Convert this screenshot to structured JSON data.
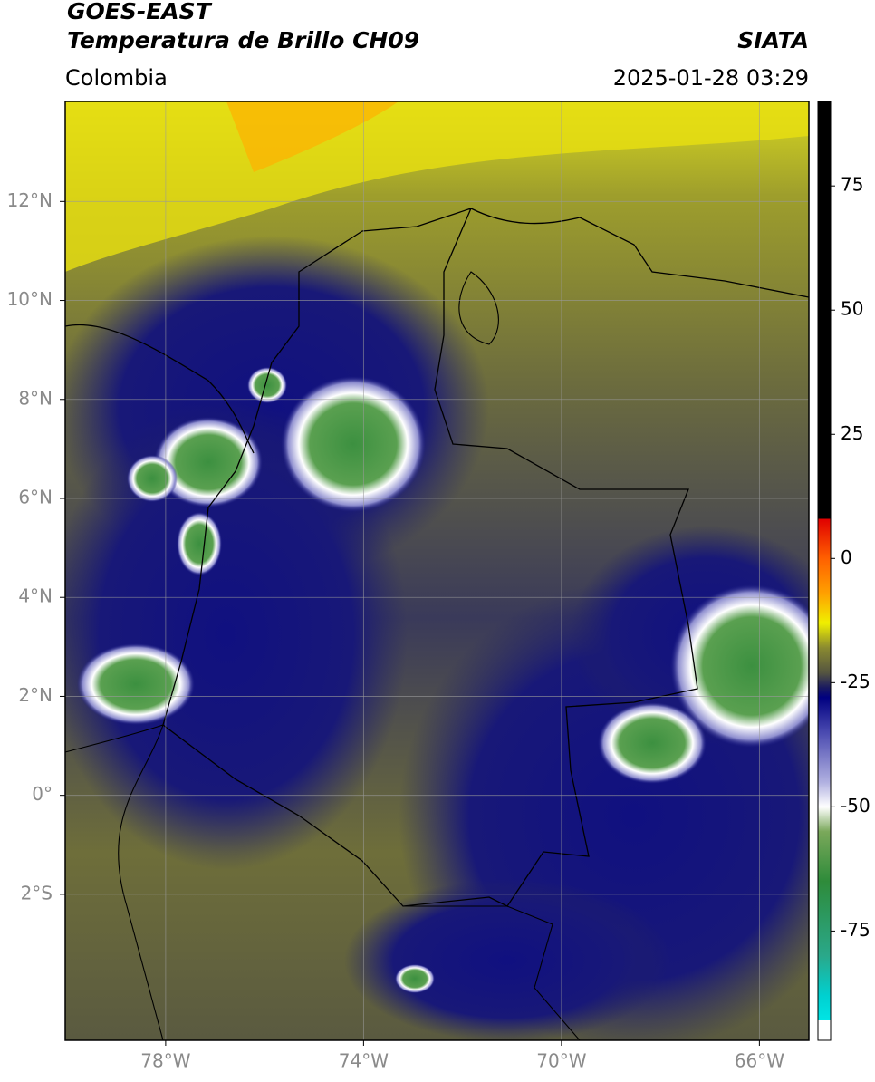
{
  "header": {
    "title": "GOES-EAST",
    "subtitle": "Temperatura de Brillo CH09",
    "source": "SIATA",
    "region": "Colombia",
    "datetime": "2025-01-28 03:29"
  },
  "map": {
    "lonlim": [
      -80.03,
      -65.0
    ],
    "latlim": [
      -4.95,
      14.02
    ],
    "lonticks": [
      {
        "value": -78,
        "label": "78°W"
      },
      {
        "value": -74,
        "label": "74°W"
      },
      {
        "value": -70,
        "label": "70°W"
      },
      {
        "value": -66,
        "label": "66°W"
      }
    ],
    "latticks": [
      {
        "value": 12,
        "label": "12°N"
      },
      {
        "value": 10,
        "label": "10°N"
      },
      {
        "value": 8,
        "label": "8°N"
      },
      {
        "value": 6,
        "label": "6°N"
      },
      {
        "value": 4,
        "label": "4°N"
      },
      {
        "value": 2,
        "label": "2°N"
      },
      {
        "value": 0,
        "label": "0°"
      },
      {
        "value": -2,
        "label": "2°S"
      }
    ],
    "grid": true
  },
  "colorbar": {
    "lim": [
      -97,
      92
    ],
    "ticks": [
      75,
      50,
      25,
      0,
      -25,
      -50,
      -75
    ],
    "stops": [
      [
        -97,
        "#ffffff"
      ],
      [
        -93,
        "#ffffff"
      ],
      [
        -93,
        "#00e5e5"
      ],
      [
        -88,
        "#00d0d0"
      ],
      [
        -80,
        "#2aa88a"
      ],
      [
        -65,
        "#2e8b3a"
      ],
      [
        -55,
        "#7aa85a"
      ],
      [
        -50,
        "#ffffff"
      ],
      [
        -45,
        "#b0b0e0"
      ],
      [
        -35,
        "#4a4ab0"
      ],
      [
        -28,
        "#000080"
      ],
      [
        -26,
        "#1a1a60"
      ],
      [
        -23,
        "#555540"
      ],
      [
        -18,
        "#8a8a30"
      ],
      [
        -13,
        "#f0f000"
      ],
      [
        -7,
        "#ffa000"
      ],
      [
        0,
        "#ff6000"
      ],
      [
        8,
        "#e00000"
      ],
      [
        8,
        "#000000"
      ],
      [
        92,
        "#000000"
      ]
    ]
  }
}
